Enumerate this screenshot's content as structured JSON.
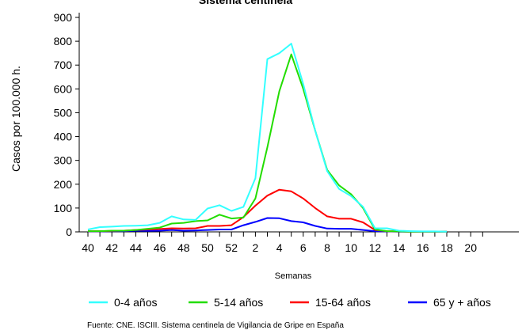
{
  "chart_data": {
    "type": "line",
    "title": "Sistema centinela",
    "xlabel": "Semanas",
    "ylabel": "Casos por 100.000 h.",
    "ylim": [
      0,
      900
    ],
    "yticks": [
      0,
      100,
      200,
      300,
      400,
      500,
      600,
      700,
      800,
      900
    ],
    "x_tick_labels": [
      "40",
      "42",
      "44",
      "46",
      "48",
      "50",
      "52",
      "2",
      "4",
      "6",
      "8",
      "10",
      "12",
      "14",
      "16",
      "18",
      "20"
    ],
    "legend_position": "bottom",
    "source": "Fuente: CNE. ISCIII. Sistema centinela de Vigilancia de Gripe en España",
    "series": [
      {
        "name": "0-4 años",
        "color": "#33ffff",
        "values": [
          10,
          20,
          22,
          25,
          26,
          28,
          38,
          65,
          52,
          50,
          98,
          112,
          88,
          105,
          225,
          725,
          750,
          790,
          620,
          425,
          255,
          180,
          150,
          105,
          15,
          15,
          5,
          3,
          2,
          2,
          1
        ]
      },
      {
        "name": "5-14 años",
        "color": "#22dd00",
        "values": [
          3,
          3,
          5,
          5,
          8,
          13,
          18,
          35,
          38,
          45,
          48,
          72,
          56,
          60,
          140,
          355,
          590,
          745,
          600,
          425,
          260,
          195,
          158,
          100,
          10,
          3,
          2,
          1,
          1,
          1,
          1
        ]
      },
      {
        "name": "15-64 años",
        "color": "#ff0000",
        "values": [
          3,
          3,
          4,
          5,
          8,
          10,
          12,
          15,
          14,
          15,
          25,
          25,
          28,
          62,
          110,
          152,
          177,
          170,
          140,
          100,
          65,
          55,
          55,
          40,
          8,
          3,
          2,
          1,
          1,
          1,
          1
        ]
      },
      {
        "name": "65 y + años",
        "color": "#0000ff",
        "values": [
          2,
          2,
          3,
          3,
          5,
          4,
          5,
          8,
          5,
          6,
          8,
          10,
          10,
          28,
          42,
          58,
          57,
          45,
          40,
          25,
          14,
          13,
          13,
          8,
          3,
          2,
          1,
          1,
          1,
          1,
          1
        ]
      }
    ]
  }
}
